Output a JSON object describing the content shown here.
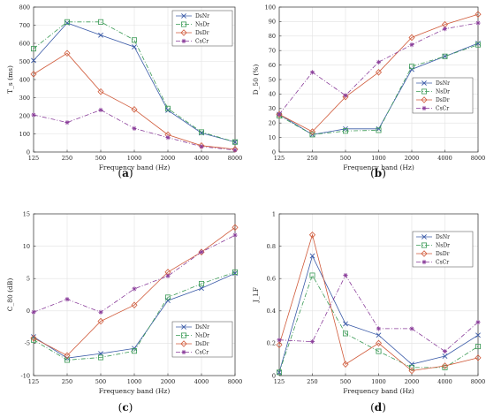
{
  "chart_data": [
    {
      "type": "line",
      "caption_open": "(",
      "caption": "a",
      "caption_close": ")",
      "ylabel": "T_s (ms)",
      "xlabel": "Frequency band (Hz)",
      "categories": [
        "125",
        "250",
        "500",
        "1000",
        "2000",
        "4000",
        "8000"
      ],
      "ylim": [
        0,
        800
      ],
      "yticks": [
        0,
        100,
        200,
        300,
        400,
        500,
        600,
        700,
        800
      ],
      "legend_position": "top-right",
      "grid": true,
      "series": [
        {
          "name": "DsNr",
          "values": [
            505,
            712,
            645,
            580,
            230,
            105,
            55
          ]
        },
        {
          "name": "NsDr",
          "values": [
            570,
            718,
            718,
            618,
            240,
            110,
            55
          ]
        },
        {
          "name": "DsDr",
          "values": [
            430,
            545,
            333,
            235,
            95,
            35,
            15
          ]
        },
        {
          "name": "CsCr",
          "values": [
            205,
            163,
            232,
            130,
            80,
            30,
            10
          ]
        }
      ]
    },
    {
      "type": "line",
      "caption_open": "(",
      "caption": "b",
      "caption_close": ")",
      "ylabel": "D_50 (%)",
      "xlabel": "Frequency band (Hz)",
      "categories": [
        "125",
        "250",
        "500",
        "1000",
        "2000",
        "4000",
        "8000"
      ],
      "ylim": [
        0,
        100
      ],
      "yticks": [
        0,
        10,
        20,
        30,
        40,
        50,
        60,
        70,
        80,
        90,
        100
      ],
      "legend_position": "center-right",
      "grid": true,
      "series": [
        {
          "name": "DsNr",
          "values": [
            26,
            12,
            16,
            16,
            57,
            66,
            75
          ]
        },
        {
          "name": "NsDr",
          "values": [
            25,
            12,
            14.5,
            15,
            59,
            66,
            74
          ]
        },
        {
          "name": "DsDr",
          "values": [
            26,
            14,
            38,
            55,
            79,
            88,
            95
          ]
        },
        {
          "name": "CsCr",
          "values": [
            26,
            55,
            39,
            62,
            74,
            85,
            89
          ]
        }
      ]
    },
    {
      "type": "line",
      "caption_open": "(",
      "caption": "c",
      "caption_close": ")",
      "ylabel": "C_80 (dB)",
      "xlabel": "Frequency band (Hz)",
      "categories": [
        "125",
        "250",
        "500",
        "1000",
        "2000",
        "4000",
        "8000"
      ],
      "ylim": [
        -10,
        15
      ],
      "yticks": [
        -10,
        -5,
        0,
        5,
        10,
        15
      ],
      "legend_position": "bottom-right",
      "grid": true,
      "series": [
        {
          "name": "DsNr",
          "values": [
            -4.0,
            -7.3,
            -6.6,
            -5.8,
            1.6,
            3.5,
            5.8
          ]
        },
        {
          "name": "NsDr",
          "values": [
            -4.5,
            -7.6,
            -7.2,
            -6.2,
            2.1,
            4.2,
            6.0
          ]
        },
        {
          "name": "DsDr",
          "values": [
            -4.2,
            -6.9,
            -1.6,
            0.9,
            6.0,
            9.1,
            12.9
          ]
        },
        {
          "name": "CsCr",
          "values": [
            -0.2,
            1.8,
            -0.2,
            3.4,
            5.4,
            9.1,
            11.7
          ]
        }
      ]
    },
    {
      "type": "line",
      "caption_open": "(",
      "caption": "d",
      "caption_close": ")",
      "ylabel": "J_LF",
      "xlabel": "Frequency band (Hz)",
      "categories": [
        "125",
        "250",
        "500",
        "1000",
        "2000",
        "4000",
        "8000"
      ],
      "ylim": [
        0,
        1
      ],
      "yticks": [
        0,
        0.2,
        0.4,
        0.6,
        0.8,
        1
      ],
      "legend_position": "top-right",
      "grid": true,
      "series": [
        {
          "name": "DsNr",
          "values": [
            0.02,
            0.74,
            0.32,
            0.25,
            0.07,
            0.12,
            0.25
          ]
        },
        {
          "name": "NsDr",
          "values": [
            0.02,
            0.62,
            0.26,
            0.15,
            0.05,
            0.05,
            0.18
          ]
        },
        {
          "name": "DsDr",
          "values": [
            0.19,
            0.87,
            0.07,
            0.2,
            0.03,
            0.06,
            0.11
          ]
        },
        {
          "name": "CsCr",
          "values": [
            0.22,
            0.21,
            0.62,
            0.29,
            0.29,
            0.15,
            0.33
          ]
        }
      ]
    }
  ],
  "series_colors": {
    "DsNr": "#3b5ba8",
    "NsDr": "#3a9a55",
    "DsDr": "#d05a3a",
    "CsCr": "#8a3d9a"
  },
  "series_markers": {
    "DsNr": "x-mark",
    "NsDr": "square",
    "DsDr": "diamond",
    "CsCr": "star"
  },
  "series_dash": {
    "DsNr": "solid",
    "NsDr": "dashdot",
    "DsDr": "solid",
    "CsCr": "dashdot"
  }
}
